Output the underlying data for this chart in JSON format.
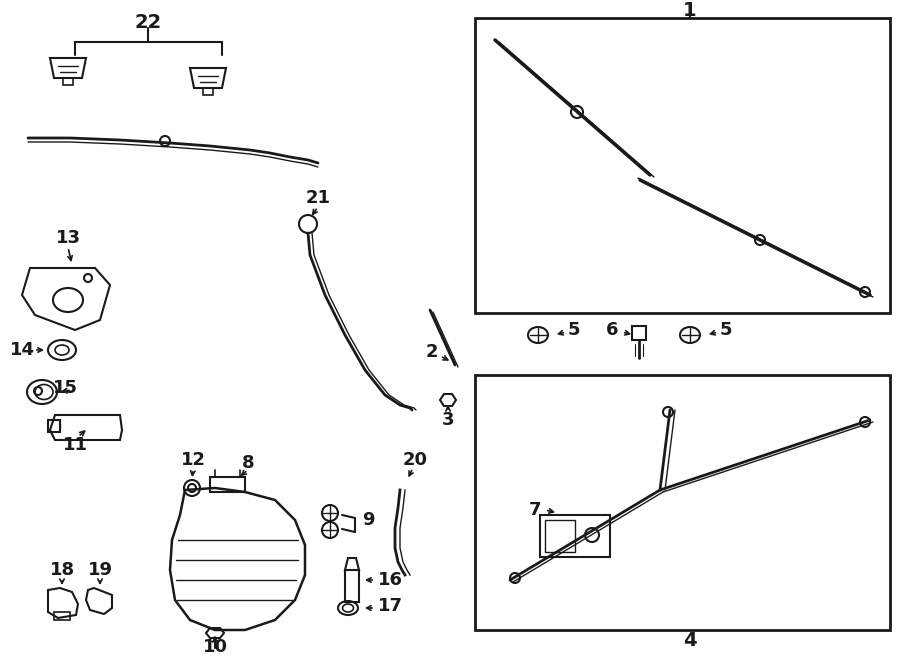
{
  "bg_color": "#ffffff",
  "line_color": "#1a1a1a",
  "figsize": [
    9.0,
    6.61
  ],
  "dpi": 100
}
